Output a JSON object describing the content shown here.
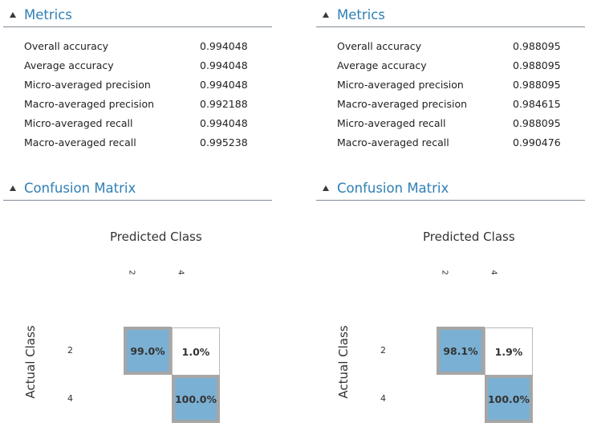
{
  "panels": [
    {
      "metrics_title": "Metrics",
      "metrics": [
        {
          "name": "Overall accuracy",
          "value": "0.994048"
        },
        {
          "name": "Average accuracy",
          "value": "0.994048"
        },
        {
          "name": "Micro-averaged precision",
          "value": "0.994048"
        },
        {
          "name": "Macro-averaged precision",
          "value": "0.992188"
        },
        {
          "name": "Micro-averaged recall",
          "value": "0.994048"
        },
        {
          "name": "Macro-averaged recall",
          "value": "0.995238"
        }
      ],
      "cm_title": "Confusion Matrix",
      "predicted_label": "Predicted Class",
      "actual_label": "Actual Class",
      "columns": [
        "2",
        "4"
      ],
      "rows": [
        "2",
        "4"
      ],
      "cells": {
        "r0c0": "99.0%",
        "r0c1": "1.0%",
        "r1c1": "100.0%"
      }
    },
    {
      "metrics_title": "Metrics",
      "metrics": [
        {
          "name": "Overall accuracy",
          "value": "0.988095"
        },
        {
          "name": "Average accuracy",
          "value": "0.988095"
        },
        {
          "name": "Micro-averaged precision",
          "value": "0.988095"
        },
        {
          "name": "Macro-averaged precision",
          "value": "0.984615"
        },
        {
          "name": "Micro-averaged recall",
          "value": "0.988095"
        },
        {
          "name": "Macro-averaged recall",
          "value": "0.990476"
        }
      ],
      "cm_title": "Confusion Matrix",
      "predicted_label": "Predicted Class",
      "actual_label": "Actual Class",
      "columns": [
        "2",
        "4"
      ],
      "rows": [
        "2",
        "4"
      ],
      "cells": {
        "r0c0": "98.1%",
        "r0c1": "1.9%",
        "r1c1": "100.0%"
      }
    }
  ],
  "colors": {
    "accent": "#2f7fb5",
    "diagonal_cell": "#7ab0d4",
    "cell_border": "#a6a6a6"
  }
}
